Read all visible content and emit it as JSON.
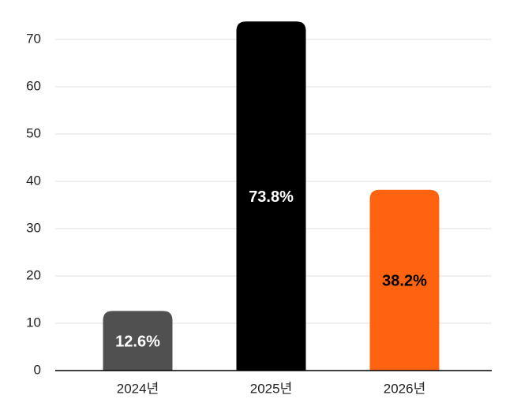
{
  "chart_data": {
    "type": "bar",
    "categories": [
      "2024년",
      "2025년",
      "2026년"
    ],
    "values": [
      12.6,
      73.8,
      38.2
    ],
    "value_labels": [
      "12.6%",
      "73.8%",
      "38.2%"
    ],
    "colors": [
      "#505050",
      "#000000",
      "#ff6310"
    ],
    "label_colors": [
      "#ffffff",
      "#ffffff",
      "#000000"
    ],
    "ylim": [
      0,
      75
    ],
    "yticks": [
      0,
      10,
      20,
      30,
      40,
      50,
      60,
      70
    ],
    "grid": true
  }
}
